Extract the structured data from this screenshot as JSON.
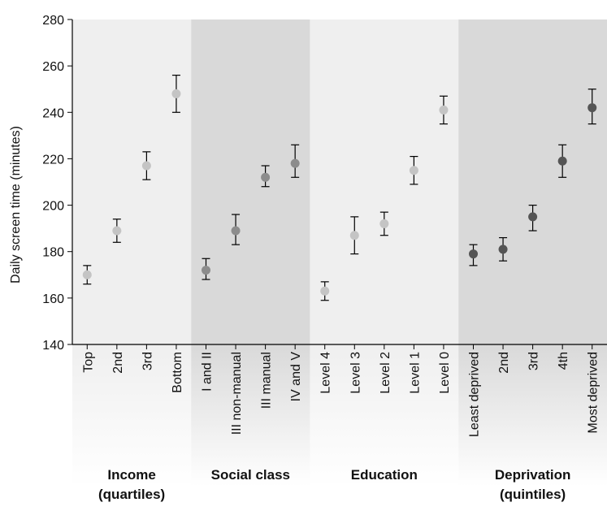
{
  "chart_data": {
    "type": "scatter",
    "ylabel": "Daily screen time (minutes)",
    "ylim": [
      140,
      280
    ],
    "yticks": [
      140,
      160,
      180,
      200,
      220,
      240,
      260,
      280
    ],
    "groups": [
      {
        "title_lines": [
          "Income",
          "(quartiles)"
        ],
        "band_color": "#efefef",
        "marker_color": "#c4c4c4",
        "categories": [
          "Top",
          "2nd",
          "3rd",
          "Bottom"
        ],
        "values": [
          170,
          189,
          217,
          248
        ],
        "lower": [
          166,
          184,
          211,
          240
        ],
        "upper": [
          174,
          194,
          223,
          256
        ]
      },
      {
        "title_lines": [
          "Social class"
        ],
        "band_color": "#d9d9d9",
        "marker_color": "#8c8c8c",
        "categories": [
          "I and II",
          "III non-manual",
          "III manual",
          "IV and V"
        ],
        "values": [
          172,
          189,
          212,
          218
        ],
        "lower": [
          168,
          183,
          208,
          212
        ],
        "upper": [
          177,
          196,
          217,
          226
        ]
      },
      {
        "title_lines": [
          "Education"
        ],
        "band_color": "#efefef",
        "marker_color": "#c4c4c4",
        "categories": [
          "Level 4",
          "Level 3",
          "Level 2",
          "Level 1",
          "Level 0"
        ],
        "values": [
          163,
          187,
          192,
          215,
          241
        ],
        "lower": [
          159,
          179,
          187,
          209,
          235
        ],
        "upper": [
          167,
          195,
          197,
          221,
          247
        ]
      },
      {
        "title_lines": [
          "Deprivation",
          "(quintiles)"
        ],
        "band_color": "#d9d9d9",
        "marker_color": "#555555",
        "categories": [
          "Least deprived",
          "2nd",
          "3rd",
          "4th",
          "Most deprived"
        ],
        "values": [
          179,
          181,
          195,
          219,
          242
        ],
        "lower": [
          174,
          176,
          189,
          212,
          235
        ],
        "upper": [
          183,
          186,
          200,
          226,
          250
        ]
      }
    ]
  }
}
